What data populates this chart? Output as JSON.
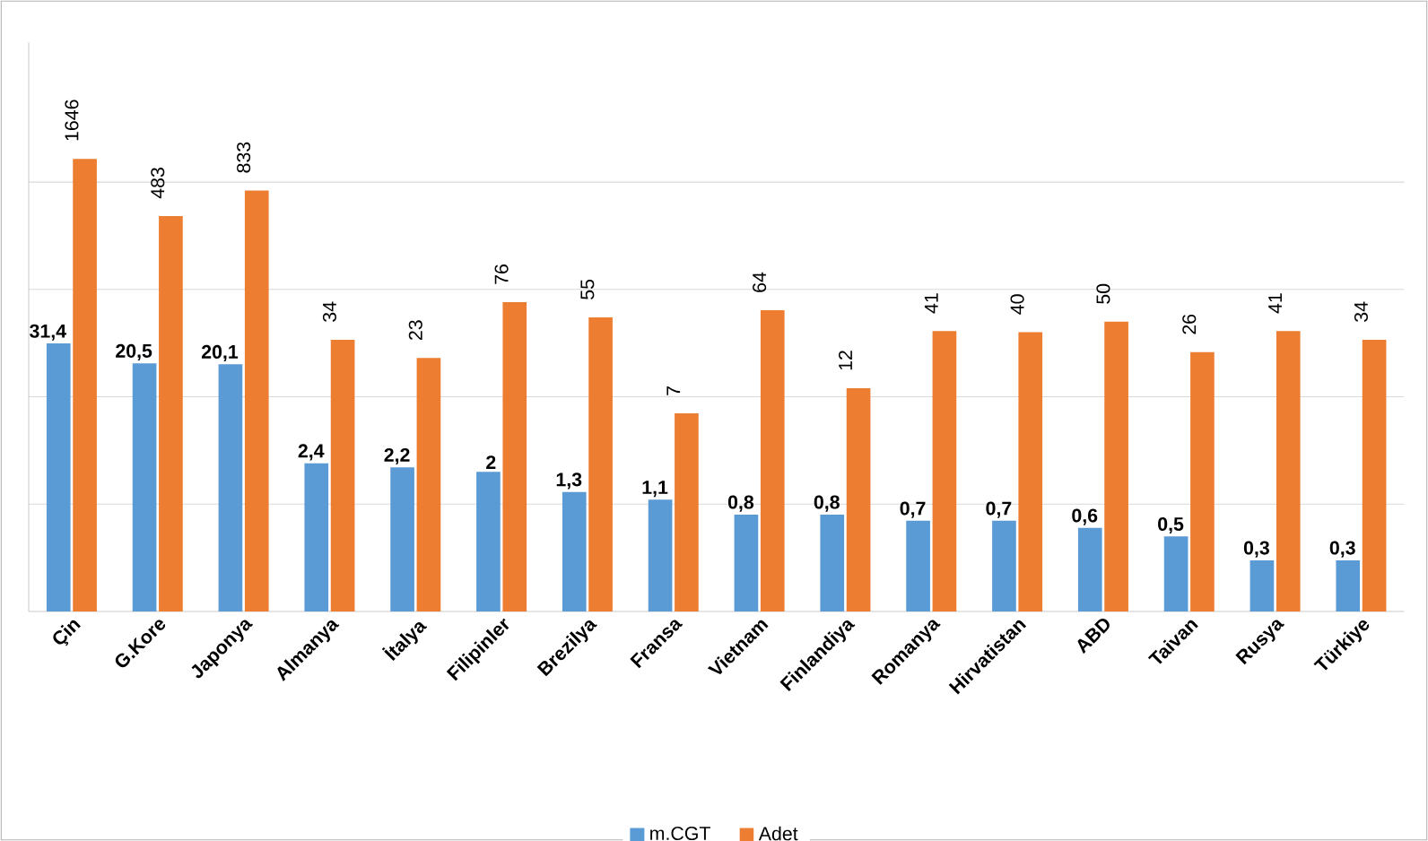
{
  "chart_data": {
    "type": "bar",
    "categories": [
      "Çin",
      "G.Kore",
      "Japonya",
      "Almanya",
      "İtalya",
      "Filipinler",
      "Brezilya",
      "Fransa",
      "Vietnam",
      "Finlandiya",
      "Romanya",
      "Hirvatistan",
      "ABD",
      "Taivan",
      "Rusya",
      "Türkiye"
    ],
    "series": [
      {
        "name": "m.CGT",
        "color": "#5b9bd5",
        "values": [
          31.4,
          20.5,
          20.1,
          2.4,
          2.2,
          2,
          1.3,
          1.1,
          0.8,
          0.8,
          0.7,
          0.7,
          0.6,
          0.5,
          0.3,
          0.3
        ],
        "value_labels": [
          "31,4",
          "20,5",
          "20,1",
          "2,4",
          "2,2",
          "2",
          "1,3",
          "1,1",
          "0,8",
          "0,8",
          "0,7",
          "0,7",
          "0,6",
          "0,5",
          "0,3",
          "0,3"
        ]
      },
      {
        "name": "Adet",
        "color": "#ed7d31",
        "values": [
          1646,
          483,
          833,
          34,
          23,
          76,
          55,
          7,
          64,
          12,
          41,
          40,
          50,
          26,
          41,
          34
        ],
        "value_labels": [
          "1646",
          "483",
          "833",
          "34",
          "23",
          "76",
          "55",
          "7",
          "64",
          "12",
          "41",
          "40",
          "50",
          "26",
          "41",
          "34"
        ]
      }
    ],
    "log": true,
    "ylim": [
      0.1,
      20000
    ],
    "yticks": [
      {
        "value": 1,
        "label": null
      },
      {
        "value": 10,
        "label": null
      },
      {
        "value": 100,
        "label": null
      },
      {
        "value": 1000,
        "label": null
      }
    ],
    "grid": "y",
    "tick_labels": "x",
    "legend": "bottom"
  }
}
